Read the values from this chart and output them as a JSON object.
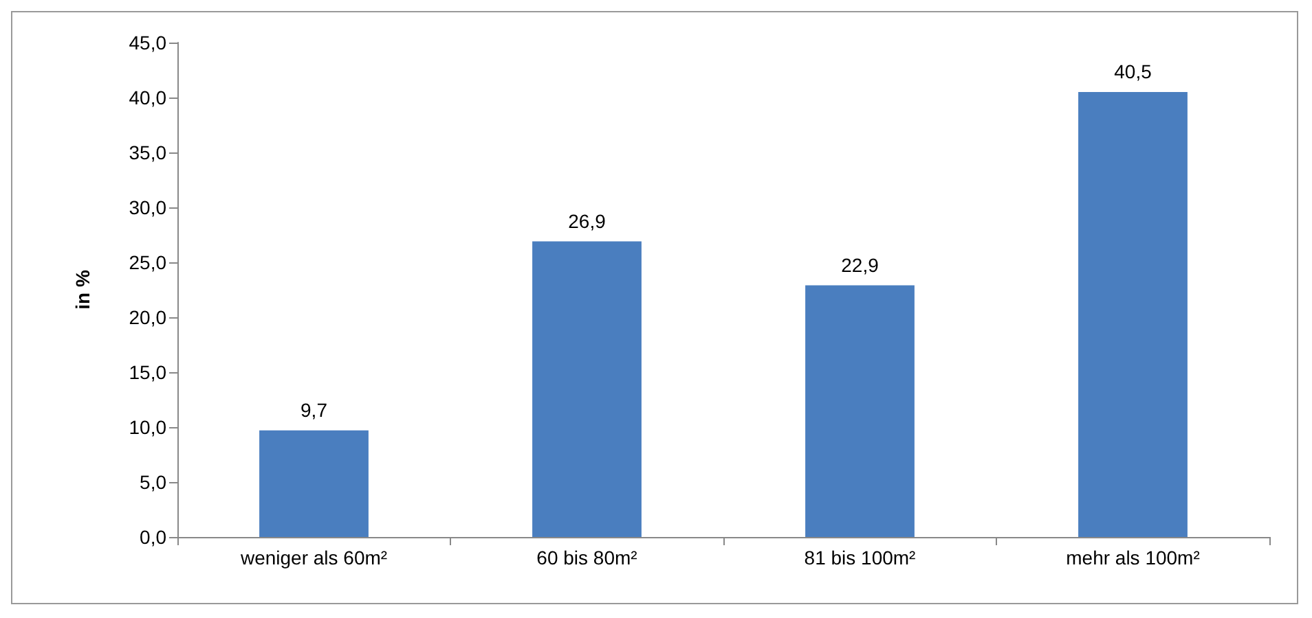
{
  "chart_data": {
    "type": "bar",
    "ylabel": "in %",
    "categories": [
      "weniger als 60m²",
      "60 bis 80m²",
      "81 bis 100m²",
      "mehr als 100m²"
    ],
    "values": [
      9.7,
      26.9,
      22.9,
      40.5
    ],
    "value_labels": [
      "9,7",
      "26,9",
      "22,9",
      "40,5"
    ],
    "color": "#4a7ebf",
    "ylim": [
      0,
      45
    ],
    "yticks": [
      {
        "value": 0,
        "label": "0,0"
      },
      {
        "value": 5,
        "label": "5,0"
      },
      {
        "value": 10,
        "label": "10,0"
      },
      {
        "value": 15,
        "label": "15,0"
      },
      {
        "value": 20,
        "label": "20,0"
      },
      {
        "value": 25,
        "label": "25,0"
      },
      {
        "value": 30,
        "label": "30,0"
      },
      {
        "value": 35,
        "label": "35,0"
      },
      {
        "value": 40,
        "label": "40,0"
      },
      {
        "value": 45,
        "label": "45,0"
      }
    ],
    "grid": false
  }
}
